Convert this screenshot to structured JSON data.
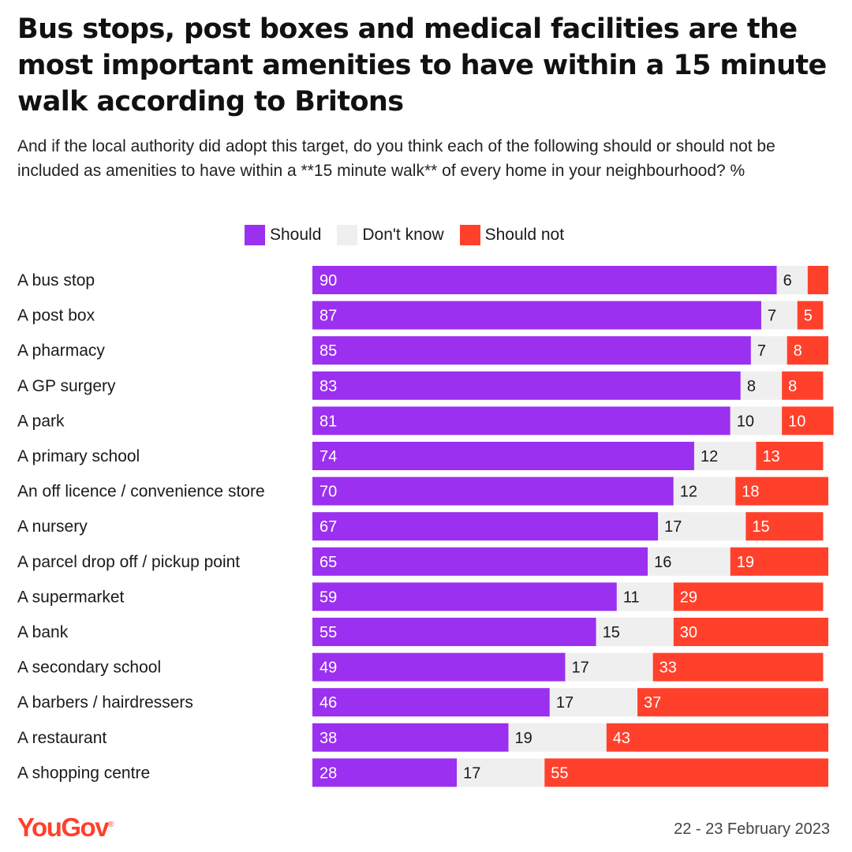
{
  "title": "Bus stops, post boxes and medical facilities are the most important amenities to have within a 15 minute walk according to Britons",
  "subtitle": "And if the local authority did adopt this target, do you think each of the following should or should not be included as amenities to have within a **15 minute walk** of every home in your neighbourhood? %",
  "legend": {
    "should": "Should",
    "dont_know": "Don't know",
    "should_not": "Should not"
  },
  "colors": {
    "should": "#9b30f0",
    "dont_know": "#efefef",
    "should_not": "#ff412c"
  },
  "footer": {
    "logo": "YouGov",
    "date": "22 - 23 February 2023"
  },
  "chart_data": {
    "type": "bar",
    "orientation": "horizontal",
    "stacked": true,
    "title": "Bus stops, post boxes and medical facilities are the most important amenities to have within a 15 minute walk according to Britons",
    "unit": "%",
    "xlim": [
      0,
      100
    ],
    "legend_position": "top",
    "categories": [
      "A bus stop",
      "A post box",
      "A pharmacy",
      "A GP surgery",
      "A park",
      "A primary school",
      "An off licence / convenience store",
      "A nursery",
      "A parcel drop off / pickup point",
      "A supermarket",
      "A bank",
      "A secondary school",
      "A barbers / hairdressers",
      "A restaurant",
      "A shopping centre"
    ],
    "series": [
      {
        "name": "Should",
        "values": [
          90,
          87,
          85,
          83,
          81,
          74,
          70,
          67,
          65,
          59,
          55,
          49,
          46,
          38,
          28
        ]
      },
      {
        "name": "Don't know",
        "values": [
          6,
          7,
          7,
          8,
          10,
          12,
          12,
          17,
          16,
          11,
          15,
          17,
          17,
          19,
          17
        ]
      },
      {
        "name": "Should not",
        "values": [
          4,
          5,
          8,
          8,
          10,
          13,
          18,
          15,
          19,
          29,
          30,
          33,
          37,
          43,
          55
        ]
      }
    ],
    "labels": {
      "Should": [
        "90",
        "87",
        "85",
        "83",
        "81",
        "74",
        "70",
        "67",
        "65",
        "59",
        "55",
        "49",
        "46",
        "38",
        "28"
      ],
      "Don't know": [
        "6",
        "7",
        "7",
        "8",
        "10",
        "12",
        "12",
        "17",
        "16",
        "11",
        "15",
        "17",
        "17",
        "19",
        "17"
      ],
      "Should not": [
        "",
        "5",
        "8",
        "8",
        "10",
        "13",
        "18",
        "15",
        "19",
        "29",
        "30",
        "33",
        "37",
        "43",
        "55"
      ]
    }
  }
}
